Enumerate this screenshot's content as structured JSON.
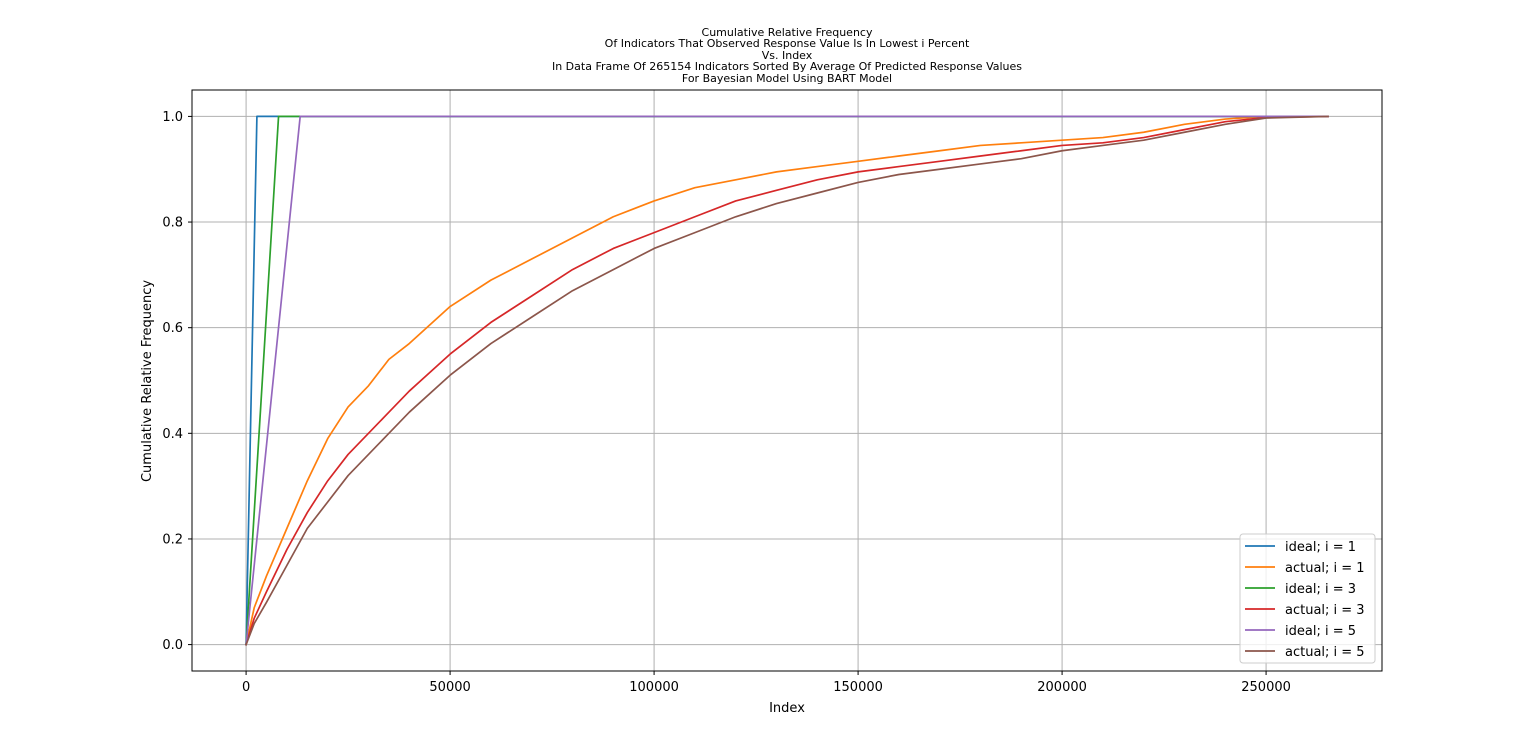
{
  "chart_data": {
    "type": "line",
    "title_lines": [
      "Cumulative Relative Frequency",
      "Of Indicators That Observed Response Value Is In Lowest i Percent",
      "Vs. Index",
      "In Data Frame Of 265154 Indicators Sorted By Average Of Predicted Response Values",
      "For Bayesian Model Using BART Model"
    ],
    "xlabel": "Index",
    "ylabel": "Cumulative Relative Frequency",
    "xlim": [
      -13258,
      278412
    ],
    "ylim": [
      -0.05,
      1.05
    ],
    "xticks": [
      0,
      50000,
      100000,
      150000,
      200000,
      250000
    ],
    "yticks": [
      0.0,
      0.2,
      0.4,
      0.6,
      0.8,
      1.0
    ],
    "xtick_labels": [
      "0",
      "50000",
      "100000",
      "150000",
      "200000",
      "250000"
    ],
    "ytick_labels": [
      "0.0",
      "0.2",
      "0.4",
      "0.6",
      "0.8",
      "1.0"
    ],
    "grid": true,
    "legend_position": "lower-right",
    "series": [
      {
        "name": "ideal; i = 1",
        "color": "#1f77b4",
        "x": [
          0,
          2652,
          265154
        ],
        "y": [
          0,
          1,
          1
        ]
      },
      {
        "name": "actual; i = 1",
        "color": "#ff7f0e",
        "x": [
          0,
          2000,
          5000,
          10000,
          15000,
          20000,
          25000,
          30000,
          35000,
          40000,
          50000,
          60000,
          70000,
          80000,
          90000,
          100000,
          110000,
          120000,
          130000,
          140000,
          150000,
          160000,
          170000,
          180000,
          190000,
          200000,
          210000,
          220000,
          230000,
          240000,
          250000,
          265154
        ],
        "y": [
          0,
          0.07,
          0.13,
          0.22,
          0.31,
          0.39,
          0.45,
          0.49,
          0.54,
          0.57,
          0.64,
          0.69,
          0.73,
          0.77,
          0.81,
          0.84,
          0.865,
          0.88,
          0.895,
          0.905,
          0.915,
          0.925,
          0.935,
          0.945,
          0.95,
          0.955,
          0.96,
          0.97,
          0.985,
          0.995,
          1.0,
          1.0
        ]
      },
      {
        "name": "ideal; i = 3",
        "color": "#2ca02c",
        "x": [
          0,
          7955,
          265154
        ],
        "y": [
          0,
          1,
          1
        ]
      },
      {
        "name": "actual; i = 3",
        "color": "#d62728",
        "x": [
          0,
          2000,
          5000,
          10000,
          15000,
          20000,
          25000,
          30000,
          35000,
          40000,
          50000,
          60000,
          70000,
          80000,
          90000,
          100000,
          110000,
          120000,
          130000,
          140000,
          150000,
          160000,
          170000,
          180000,
          190000,
          200000,
          210000,
          220000,
          230000,
          240000,
          250000,
          265154
        ],
        "y": [
          0,
          0.05,
          0.1,
          0.18,
          0.25,
          0.31,
          0.36,
          0.4,
          0.44,
          0.48,
          0.55,
          0.61,
          0.66,
          0.71,
          0.75,
          0.78,
          0.81,
          0.84,
          0.86,
          0.88,
          0.895,
          0.905,
          0.915,
          0.925,
          0.935,
          0.945,
          0.95,
          0.96,
          0.975,
          0.99,
          0.998,
          1.0
        ]
      },
      {
        "name": "ideal; i = 5",
        "color": "#9467bd",
        "x": [
          0,
          13258,
          265154
        ],
        "y": [
          0,
          1,
          1
        ]
      },
      {
        "name": "actual; i = 5",
        "color": "#8c564b",
        "x": [
          0,
          2000,
          5000,
          10000,
          15000,
          20000,
          25000,
          30000,
          35000,
          40000,
          50000,
          60000,
          70000,
          80000,
          90000,
          100000,
          110000,
          120000,
          130000,
          140000,
          150000,
          160000,
          170000,
          180000,
          190000,
          200000,
          210000,
          220000,
          230000,
          240000,
          250000,
          265154
        ],
        "y": [
          0,
          0.04,
          0.08,
          0.15,
          0.22,
          0.27,
          0.32,
          0.36,
          0.4,
          0.44,
          0.51,
          0.57,
          0.62,
          0.67,
          0.71,
          0.75,
          0.78,
          0.81,
          0.835,
          0.855,
          0.875,
          0.89,
          0.9,
          0.91,
          0.92,
          0.935,
          0.945,
          0.955,
          0.97,
          0.985,
          0.997,
          1.0
        ]
      }
    ]
  }
}
